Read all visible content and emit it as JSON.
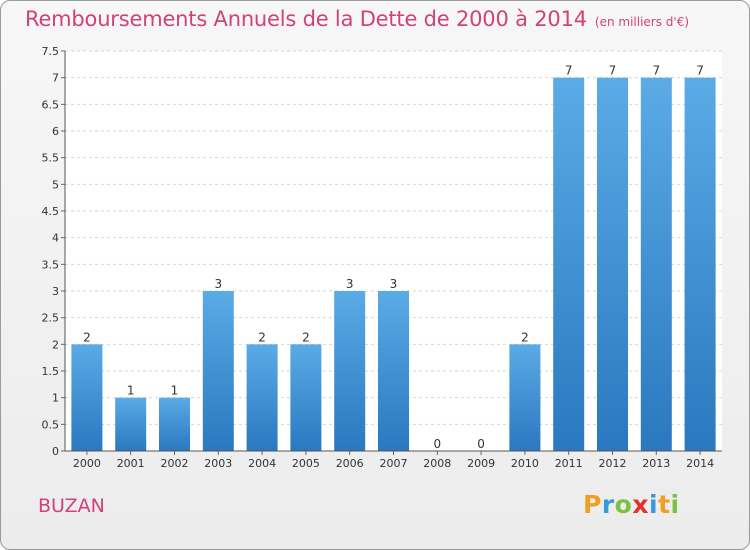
{
  "header": {
    "title": "Remboursements Annuels de la Dette de 2000 à 2014",
    "unit": "(en milliers d'€)"
  },
  "footer": {
    "commune": "BUZAN",
    "logo_letters": [
      "P",
      "r",
      "o",
      "x",
      "i",
      "t",
      "i"
    ],
    "logo_colors": [
      "#f0a020",
      "#3a9ad9",
      "#7cc242",
      "#e3312d",
      "#3a9ad9",
      "#f0a020",
      "#7cc242"
    ]
  },
  "colors": {
    "accent": "#d0427a",
    "bar_light": "#5aabe6",
    "bar_dark": "#2a78bf"
  },
  "chart_data": {
    "type": "bar",
    "categories": [
      "2000",
      "2001",
      "2002",
      "2003",
      "2004",
      "2005",
      "2006",
      "2007",
      "2008",
      "2009",
      "2010",
      "2011",
      "2012",
      "2013",
      "2014"
    ],
    "values": [
      2,
      1,
      1,
      3,
      2,
      2,
      3,
      3,
      0,
      0,
      2,
      7,
      7,
      7,
      7
    ],
    "data_labels": [
      "2",
      "1",
      "1",
      "3",
      "2",
      "2",
      "3",
      "3",
      "0",
      "0",
      "2",
      "7",
      "7",
      "7",
      "7"
    ],
    "y_ticks": [
      "0",
      "0.5",
      "1",
      "1.5",
      "2",
      "2.5",
      "3",
      "3.5",
      "4",
      "4.5",
      "5",
      "5.5",
      "6",
      "6.5",
      "7",
      "7.5"
    ],
    "ylim": [
      0,
      7.5
    ],
    "grid": true
  }
}
